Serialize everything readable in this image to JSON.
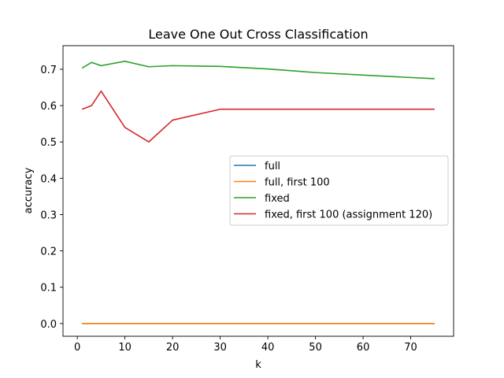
{
  "chart_data": {
    "type": "line",
    "title": "Leave One Out Cross Classification",
    "xlabel": "k",
    "ylabel": "accuracy",
    "xlim": [
      -3,
      79
    ],
    "ylim": [
      -0.035,
      0.765
    ],
    "xticks": [
      0,
      10,
      20,
      30,
      40,
      50,
      60,
      70
    ],
    "yticks": [
      0.0,
      0.1,
      0.2,
      0.3,
      0.4,
      0.5,
      0.6,
      0.7
    ],
    "ytick_labels": [
      "0.0",
      "0.1",
      "0.2",
      "0.3",
      "0.4",
      "0.5",
      "0.6",
      "0.7"
    ],
    "grid": false,
    "legend_position": "center-right",
    "series": [
      {
        "name": "full",
        "color": "#1f77b4",
        "x": [
          1,
          3,
          5,
          10,
          15,
          20,
          30,
          40,
          50,
          60,
          75
        ],
        "y": [
          0,
          0,
          0,
          0,
          0,
          0,
          0,
          0,
          0,
          0,
          0
        ]
      },
      {
        "name": "full, first 100",
        "color": "#ff7f0e",
        "x": [
          1,
          3,
          5,
          10,
          15,
          20,
          30,
          40,
          50,
          60,
          75
        ],
        "y": [
          0,
          0,
          0,
          0,
          0,
          0,
          0,
          0,
          0,
          0,
          0
        ]
      },
      {
        "name": "fixed",
        "color": "#2ca02c",
        "x": [
          1,
          3,
          5,
          10,
          15,
          20,
          30,
          40,
          50,
          60,
          75
        ],
        "y": [
          0.703,
          0.719,
          0.71,
          0.722,
          0.707,
          0.71,
          0.708,
          0.701,
          0.691,
          0.684,
          0.674
        ]
      },
      {
        "name": "fixed, first 100 (assignment 120)",
        "color": "#d62728",
        "x": [
          1,
          3,
          5,
          10,
          15,
          20,
          30,
          40,
          50,
          60,
          75
        ],
        "y": [
          0.59,
          0.6,
          0.64,
          0.54,
          0.5,
          0.56,
          0.59,
          0.59,
          0.59,
          0.59,
          0.59
        ]
      }
    ]
  }
}
